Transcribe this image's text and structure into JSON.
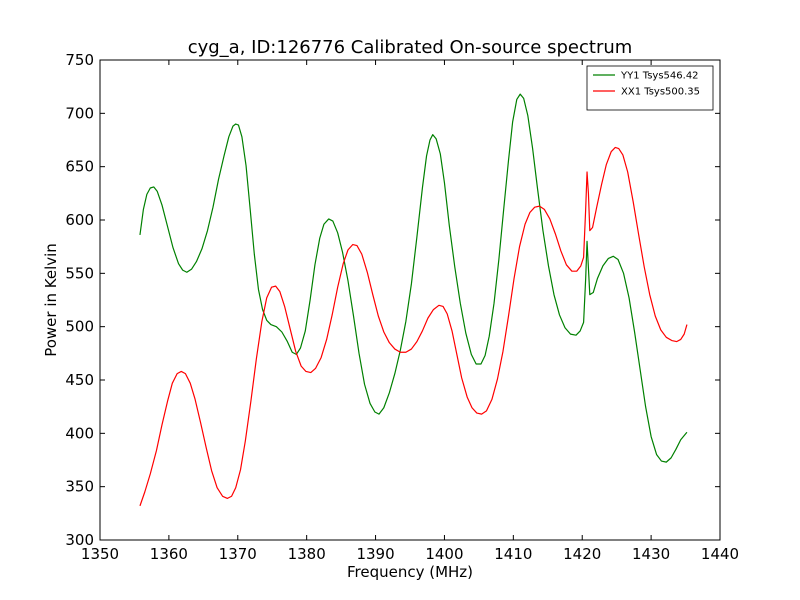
{
  "chart_data": {
    "type": "line",
    "title": "cyg_a, ID:126776 Calibrated On-source spectrum",
    "xlabel": "Frequency (MHz)",
    "ylabel": "Power in Kelvin",
    "xlim": [
      1350,
      1440
    ],
    "ylim": [
      300,
      750
    ],
    "xticks": [
      1350,
      1360,
      1370,
      1380,
      1390,
      1400,
      1410,
      1420,
      1430,
      1440
    ],
    "yticks": [
      300,
      350,
      400,
      450,
      500,
      550,
      600,
      650,
      700,
      750
    ],
    "grid": false,
    "legend_position": "top-right",
    "series": [
      {
        "name": "YY1 Tsys546.42",
        "color": "#008000",
        "points": [
          [
            1355.8,
            586
          ],
          [
            1356.3,
            610
          ],
          [
            1356.8,
            624
          ],
          [
            1357.3,
            630
          ],
          [
            1357.8,
            631
          ],
          [
            1358.3,
            627
          ],
          [
            1359.0,
            614
          ],
          [
            1359.8,
            594
          ],
          [
            1360.6,
            574
          ],
          [
            1361.4,
            559
          ],
          [
            1362.0,
            553
          ],
          [
            1362.6,
            551
          ],
          [
            1363.3,
            554
          ],
          [
            1364.0,
            561
          ],
          [
            1364.8,
            573
          ],
          [
            1365.6,
            590
          ],
          [
            1366.4,
            612
          ],
          [
            1367.2,
            638
          ],
          [
            1368.0,
            660
          ],
          [
            1368.7,
            678
          ],
          [
            1369.3,
            688
          ],
          [
            1369.7,
            690
          ],
          [
            1370.1,
            689
          ],
          [
            1370.6,
            678
          ],
          [
            1371.2,
            651
          ],
          [
            1371.8,
            610
          ],
          [
            1372.4,
            568
          ],
          [
            1373.0,
            535
          ],
          [
            1373.6,
            516
          ],
          [
            1374.2,
            506
          ],
          [
            1374.8,
            502
          ],
          [
            1375.6,
            500
          ],
          [
            1376.4,
            495
          ],
          [
            1377.2,
            486
          ],
          [
            1377.9,
            476
          ],
          [
            1378.5,
            474
          ],
          [
            1379.1,
            480
          ],
          [
            1379.8,
            496
          ],
          [
            1380.5,
            525
          ],
          [
            1381.2,
            558
          ],
          [
            1381.9,
            583
          ],
          [
            1382.5,
            596
          ],
          [
            1383.2,
            601
          ],
          [
            1383.8,
            599
          ],
          [
            1384.5,
            588
          ],
          [
            1385.2,
            570
          ],
          [
            1386.0,
            543
          ],
          [
            1386.8,
            510
          ],
          [
            1387.6,
            475
          ],
          [
            1388.4,
            446
          ],
          [
            1389.2,
            428
          ],
          [
            1389.9,
            420
          ],
          [
            1390.5,
            418
          ],
          [
            1391.2,
            424
          ],
          [
            1392.0,
            438
          ],
          [
            1392.8,
            456
          ],
          [
            1393.6,
            478
          ],
          [
            1394.4,
            505
          ],
          [
            1395.2,
            540
          ],
          [
            1396.0,
            584
          ],
          [
            1396.8,
            630
          ],
          [
            1397.4,
            660
          ],
          [
            1397.9,
            675
          ],
          [
            1398.3,
            680
          ],
          [
            1398.8,
            676
          ],
          [
            1399.4,
            662
          ],
          [
            1400.0,
            635
          ],
          [
            1400.7,
            595
          ],
          [
            1401.5,
            556
          ],
          [
            1402.3,
            522
          ],
          [
            1403.1,
            494
          ],
          [
            1403.9,
            474
          ],
          [
            1404.6,
            465
          ],
          [
            1405.3,
            465
          ],
          [
            1405.9,
            473
          ],
          [
            1406.5,
            491
          ],
          [
            1407.2,
            522
          ],
          [
            1407.9,
            563
          ],
          [
            1408.6,
            610
          ],
          [
            1409.3,
            656
          ],
          [
            1409.9,
            692
          ],
          [
            1410.5,
            713
          ],
          [
            1411.0,
            718
          ],
          [
            1411.5,
            714
          ],
          [
            1412.1,
            698
          ],
          [
            1412.8,
            667
          ],
          [
            1413.5,
            630
          ],
          [
            1414.3,
            590
          ],
          [
            1415.1,
            557
          ],
          [
            1415.9,
            530
          ],
          [
            1416.7,
            511
          ],
          [
            1417.5,
            499
          ],
          [
            1418.3,
            493
          ],
          [
            1419.1,
            492
          ],
          [
            1419.7,
            496
          ],
          [
            1420.2,
            504
          ],
          [
            1420.5,
            545
          ],
          [
            1420.7,
            580
          ],
          [
            1420.9,
            555
          ],
          [
            1421.1,
            530
          ],
          [
            1421.6,
            532
          ],
          [
            1422.2,
            545
          ],
          [
            1423.0,
            557
          ],
          [
            1423.8,
            564
          ],
          [
            1424.5,
            566
          ],
          [
            1425.2,
            563
          ],
          [
            1426.0,
            550
          ],
          [
            1426.8,
            527
          ],
          [
            1427.6,
            495
          ],
          [
            1428.4,
            460
          ],
          [
            1429.2,
            425
          ],
          [
            1430.0,
            397
          ],
          [
            1430.8,
            380
          ],
          [
            1431.5,
            374
          ],
          [
            1432.2,
            373
          ],
          [
            1432.9,
            377
          ],
          [
            1433.6,
            385
          ],
          [
            1434.3,
            394
          ],
          [
            1435.2,
            401
          ]
        ]
      },
      {
        "name": "XX1 Tsys500.35",
        "color": "#ff0000",
        "points": [
          [
            1355.8,
            332
          ],
          [
            1356.5,
            345
          ],
          [
            1357.3,
            362
          ],
          [
            1358.2,
            384
          ],
          [
            1359.0,
            408
          ],
          [
            1359.8,
            430
          ],
          [
            1360.5,
            447
          ],
          [
            1361.2,
            456
          ],
          [
            1361.8,
            458
          ],
          [
            1362.4,
            456
          ],
          [
            1363.1,
            447
          ],
          [
            1363.8,
            432
          ],
          [
            1364.6,
            410
          ],
          [
            1365.4,
            387
          ],
          [
            1366.2,
            365
          ],
          [
            1367.0,
            349
          ],
          [
            1367.8,
            341
          ],
          [
            1368.5,
            339
          ],
          [
            1369.1,
            341
          ],
          [
            1369.7,
            349
          ],
          [
            1370.4,
            366
          ],
          [
            1371.1,
            393
          ],
          [
            1371.9,
            430
          ],
          [
            1372.7,
            470
          ],
          [
            1373.5,
            505
          ],
          [
            1374.2,
            527
          ],
          [
            1374.9,
            537
          ],
          [
            1375.5,
            538
          ],
          [
            1376.1,
            533
          ],
          [
            1376.8,
            519
          ],
          [
            1377.6,
            498
          ],
          [
            1378.4,
            477
          ],
          [
            1379.2,
            463
          ],
          [
            1379.9,
            458
          ],
          [
            1380.6,
            457
          ],
          [
            1381.3,
            461
          ],
          [
            1382.1,
            471
          ],
          [
            1382.9,
            488
          ],
          [
            1383.7,
            511
          ],
          [
            1384.5,
            537
          ],
          [
            1385.3,
            559
          ],
          [
            1386.0,
            572
          ],
          [
            1386.7,
            577
          ],
          [
            1387.3,
            576
          ],
          [
            1388.0,
            568
          ],
          [
            1388.8,
            551
          ],
          [
            1389.6,
            530
          ],
          [
            1390.4,
            510
          ],
          [
            1391.2,
            495
          ],
          [
            1392.0,
            485
          ],
          [
            1392.8,
            479
          ],
          [
            1393.6,
            476
          ],
          [
            1394.4,
            476
          ],
          [
            1395.2,
            479
          ],
          [
            1396.0,
            486
          ],
          [
            1396.8,
            496
          ],
          [
            1397.6,
            508
          ],
          [
            1398.4,
            516
          ],
          [
            1399.2,
            520
          ],
          [
            1399.8,
            519
          ],
          [
            1400.4,
            512
          ],
          [
            1401.1,
            496
          ],
          [
            1401.8,
            474
          ],
          [
            1402.5,
            452
          ],
          [
            1403.3,
            434
          ],
          [
            1404.0,
            424
          ],
          [
            1404.7,
            419
          ],
          [
            1405.4,
            418
          ],
          [
            1406.1,
            421
          ],
          [
            1406.9,
            432
          ],
          [
            1407.7,
            451
          ],
          [
            1408.5,
            477
          ],
          [
            1409.3,
            510
          ],
          [
            1410.1,
            545
          ],
          [
            1410.9,
            575
          ],
          [
            1411.7,
            596
          ],
          [
            1412.4,
            607
          ],
          [
            1413.1,
            612
          ],
          [
            1413.8,
            613
          ],
          [
            1414.5,
            610
          ],
          [
            1415.3,
            601
          ],
          [
            1416.1,
            587
          ],
          [
            1416.9,
            571
          ],
          [
            1417.7,
            558
          ],
          [
            1418.5,
            552
          ],
          [
            1419.2,
            552
          ],
          [
            1419.8,
            557
          ],
          [
            1420.2,
            565
          ],
          [
            1420.5,
            610
          ],
          [
            1420.7,
            645
          ],
          [
            1420.9,
            625
          ],
          [
            1421.1,
            590
          ],
          [
            1421.5,
            593
          ],
          [
            1422.1,
            612
          ],
          [
            1422.8,
            633
          ],
          [
            1423.5,
            652
          ],
          [
            1424.2,
            664
          ],
          [
            1424.8,
            668
          ],
          [
            1425.3,
            667
          ],
          [
            1425.9,
            661
          ],
          [
            1426.6,
            645
          ],
          [
            1427.4,
            617
          ],
          [
            1428.2,
            586
          ],
          [
            1429.0,
            556
          ],
          [
            1429.8,
            530
          ],
          [
            1430.6,
            510
          ],
          [
            1431.4,
            497
          ],
          [
            1432.2,
            490
          ],
          [
            1433.0,
            487
          ],
          [
            1433.7,
            486
          ],
          [
            1434.3,
            488
          ],
          [
            1434.8,
            493
          ],
          [
            1435.2,
            502
          ]
        ]
      }
    ]
  }
}
